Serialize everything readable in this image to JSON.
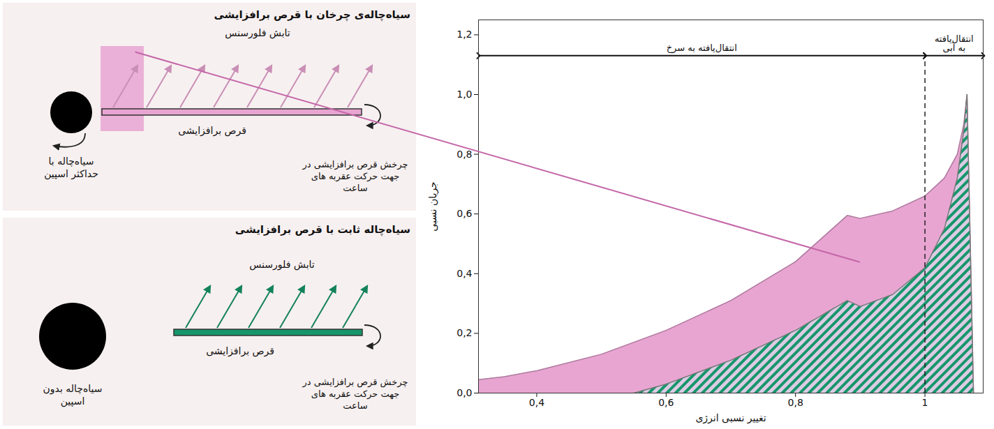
{
  "diagrams": [
    {
      "title": "سیاه‌چاله‌ی چرخان با قرص برافزایشی",
      "emission_label": "تابش فلورسنس",
      "disk_label": "قرص برافزایشی",
      "rotation_label": "چرخش قرص برافزایشی در جهت حرکت عقربه های ساعت",
      "black_hole_label": "سیاه‌چاله با حداکثر اسپین",
      "color": "#e8a5d2"
    },
    {
      "title": "سیاه‌چاله ثابت با قرص برافزایشی",
      "emission_label": "تابش فلورسنس",
      "disk_label": "قرص برافزایشی",
      "rotation_label": "چرخش قرص برافزایشی در جهت حرکت عقربه های ساعت",
      "black_hole_label": "سیاه‌چاله بدون اسپین",
      "color": "#16966a"
    }
  ],
  "chart_data": {
    "type": "area",
    "xlabel": "تغییر نسبی انرژی",
    "ylabel": "جریان نسبی",
    "xlim": [
      0.31,
      1.09
    ],
    "xticks": [
      {
        "value": 0.4,
        "label": "0,4"
      },
      {
        "value": 0.6,
        "label": "0,6"
      },
      {
        "value": 0.8,
        "label": "0,8"
      },
      1
    ],
    "ylim": [
      0,
      1.25
    ],
    "yticks": [
      {
        "value": 0,
        "label": "0,0"
      },
      {
        "value": 0.2,
        "label": "0,2"
      },
      {
        "value": 0.4,
        "label": "0,4"
      },
      {
        "value": 0.6,
        "label": "0,6"
      },
      {
        "value": 0.8,
        "label": "0,8"
      },
      {
        "value": 1,
        "label": "1,0"
      },
      {
        "value": 1.2,
        "label": "1,2"
      }
    ],
    "series": [
      {
        "color": "#e8a5d2",
        "x": [
          0.31,
          0.35,
          0.4,
          0.5,
          0.6,
          0.7,
          0.8,
          0.88,
          0.9,
          0.95,
          1.0,
          1.03,
          1.05,
          1.06,
          1.065,
          1.075
        ],
        "values": [
          0.045,
          0.055,
          0.075,
          0.13,
          0.21,
          0.31,
          0.44,
          0.595,
          0.585,
          0.61,
          0.66,
          0.72,
          0.8,
          0.9,
          1.0,
          0
        ]
      },
      {
        "color": "#16966a",
        "x": [
          0.55,
          0.6,
          0.7,
          0.8,
          0.88,
          0.9,
          0.95,
          1.0,
          1.03,
          1.05,
          1.06,
          1.065,
          1.075
        ],
        "values": [
          0,
          0.03,
          0.11,
          0.21,
          0.31,
          0.29,
          0.33,
          0.42,
          0.55,
          0.72,
          0.88,
          1.0,
          0
        ]
      }
    ],
    "annotations": {
      "divider": 1,
      "regions": [
        {
          "label": "انتقال‌یافته به سرخ",
          "from": 0.31,
          "to": 1,
          "y": 1.13
        },
        {
          "label": "انتقال‌یافته به آبی",
          "from": 1,
          "to": 1.09,
          "y": 1.13
        }
      ]
    }
  }
}
